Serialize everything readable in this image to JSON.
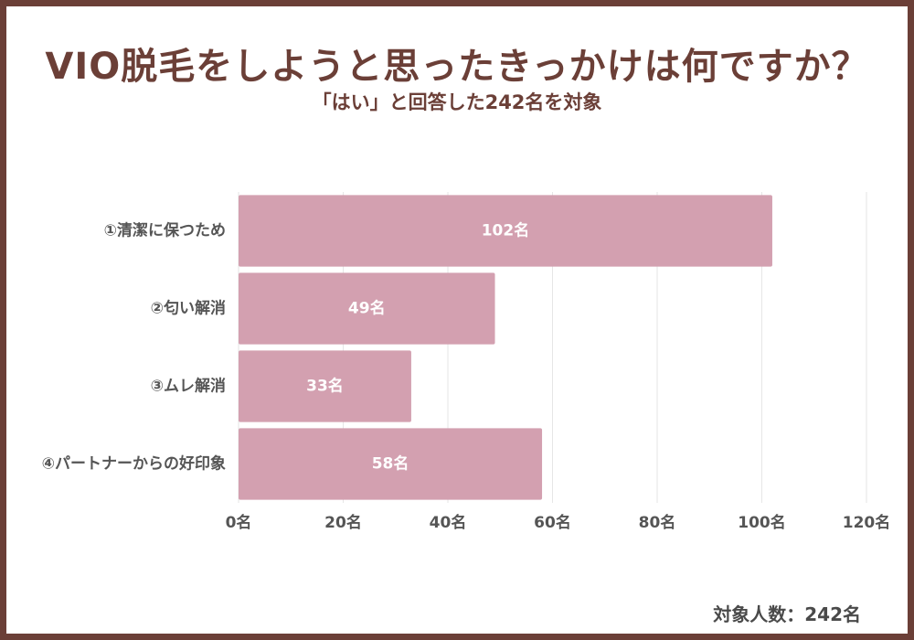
{
  "title": "VIO脱毛をしようと思ったきっかけは何ですか？",
  "subtitle": "「はい」と回答した242名を対象",
  "footer": "対象人数：242名",
  "colors": {
    "frame": "#6b3f37",
    "title": "#6b3f37",
    "bar": "#d3a0b0",
    "grid": "#e6e6e6",
    "axis_text": "#555555",
    "bar_label": "#ffffff"
  },
  "chart_data": {
    "type": "bar",
    "orientation": "horizontal",
    "categories": [
      "①清潔に保つため",
      "②匂い解消",
      "③ムレ解消",
      "④パートナーからの好印象"
    ],
    "values": [
      102,
      49,
      33,
      58
    ],
    "value_labels": [
      "102名",
      "49名",
      "33名",
      "58名"
    ],
    "xlim": [
      0,
      120
    ],
    "xticks": [
      0,
      20,
      40,
      60,
      80,
      100,
      120
    ],
    "xtick_labels": [
      "0名",
      "20名",
      "40名",
      "60名",
      "80名",
      "100名",
      "120名"
    ],
    "grid": true,
    "legend": false
  }
}
